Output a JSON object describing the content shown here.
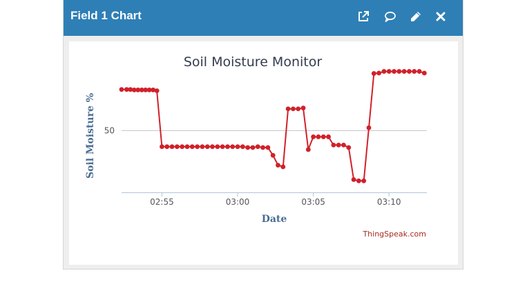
{
  "window": {
    "title": "Field 1 Chart",
    "icons": [
      "external-link-icon",
      "comment-icon",
      "pencil-icon",
      "close-icon"
    ],
    "header_color": "#2e7fb6"
  },
  "credit": "ThingSpeak.com",
  "chart_data": {
    "type": "line",
    "title": "Soil Moisture Monitor",
    "xlabel": "Date",
    "ylabel": "Soil Moisture %",
    "x_ticks": [
      "02:55",
      "03:00",
      "03:05",
      "03:10"
    ],
    "y_ticks": [
      50
    ],
    "xlim": [
      "02:52:20",
      "03:12:30"
    ],
    "ylim": [
      35,
      65
    ],
    "grid": true,
    "series": [
      {
        "color": "#d0212a",
        "x": [
          "02:52:20",
          "02:52:40",
          "02:52:55",
          "02:53:10",
          "02:53:25",
          "02:53:40",
          "02:53:55",
          "02:54:10",
          "02:54:25",
          "02:54:40",
          "02:55:00",
          "02:55:20",
          "02:55:40",
          "02:56:00",
          "02:56:20",
          "02:56:40",
          "02:57:00",
          "02:57:20",
          "02:57:40",
          "02:58:00",
          "02:58:20",
          "02:58:40",
          "02:59:00",
          "02:59:20",
          "02:59:40",
          "03:00:00",
          "03:00:20",
          "03:00:40",
          "03:01:00",
          "03:01:20",
          "03:01:40",
          "03:02:00",
          "03:02:20",
          "03:02:40",
          "03:03:00",
          "03:03:20",
          "03:03:40",
          "03:04:00",
          "03:04:20",
          "03:04:40",
          "03:05:00",
          "03:05:20",
          "03:05:40",
          "03:06:00",
          "03:06:20",
          "03:06:40",
          "03:07:00",
          "03:07:20",
          "03:07:40",
          "03:08:00",
          "03:08:20",
          "03:08:40",
          "03:09:00",
          "03:09:20",
          "03:09:40",
          "03:10:00",
          "03:10:20",
          "03:10:40",
          "03:11:00",
          "03:11:20",
          "03:11:40",
          "03:12:00",
          "03:12:20"
        ],
        "values": [
          60,
          60,
          60,
          59.9,
          59.9,
          59.9,
          59.9,
          59.9,
          59.9,
          59.7,
          46.1,
          46.1,
          46.1,
          46.1,
          46.1,
          46.1,
          46.1,
          46.1,
          46.1,
          46.1,
          46.1,
          46.1,
          46.1,
          46.1,
          46.1,
          46.1,
          46.1,
          45.9,
          45.9,
          46.1,
          45.9,
          45.9,
          44,
          41.6,
          41.2,
          55.3,
          55.3,
          55.3,
          55.5,
          45.4,
          48.5,
          48.5,
          48.5,
          48.5,
          46.5,
          46.5,
          46.5,
          45.9,
          38.1,
          37.8,
          37.8,
          50.7,
          63.9,
          64,
          64.4,
          64.4,
          64.4,
          64.4,
          64.4,
          64.4,
          64.4,
          64.4,
          64
        ]
      }
    ]
  }
}
